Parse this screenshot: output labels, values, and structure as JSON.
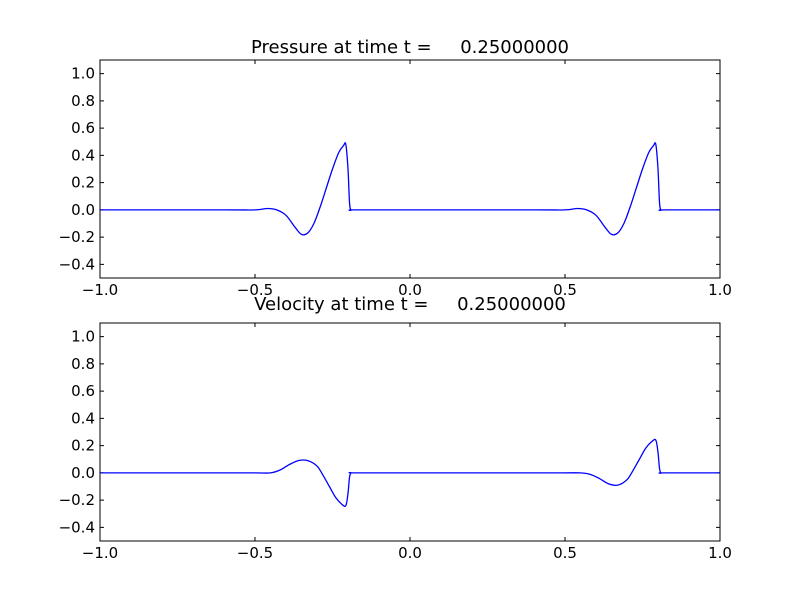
{
  "chart_data": [
    {
      "type": "line",
      "title": "Pressure at time t =     0.25000000",
      "xlim": [
        -1.0,
        1.0
      ],
      "ylim": [
        -0.5,
        1.1
      ],
      "xticks": [
        "−1.0",
        "−0.5",
        "0.0",
        "0.5",
        "1.0"
      ],
      "xtick_values": [
        -1.0,
        -0.5,
        0.0,
        0.5,
        1.0
      ],
      "yticks": [
        "−0.4",
        "−0.2",
        "0.0",
        "0.2",
        "0.4",
        "0.6",
        "0.8",
        "1.0"
      ],
      "ytick_values": [
        -0.4,
        -0.2,
        0.0,
        0.2,
        0.4,
        0.6,
        0.8,
        1.0
      ],
      "grid": false,
      "color": "#0000ff",
      "series": [
        {
          "x": [
            -1.0,
            -0.6,
            -0.5,
            -0.46,
            -0.43,
            -0.4,
            -0.37,
            -0.35,
            -0.33,
            -0.31,
            -0.29,
            -0.27,
            -0.25,
            -0.23,
            -0.215,
            -0.207,
            -0.2,
            -0.195,
            -0.19,
            -0.18,
            0.0,
            0.4,
            0.5,
            0.54,
            0.57,
            0.6,
            0.63,
            0.65,
            0.67,
            0.69,
            0.71,
            0.73,
            0.75,
            0.77,
            0.785,
            0.793,
            0.8,
            0.805,
            0.81,
            0.82,
            1.0
          ],
          "y": [
            0.0,
            0.0,
            0.0,
            0.01,
            0.0,
            -0.04,
            -0.13,
            -0.18,
            -0.17,
            -0.1,
            0.02,
            0.16,
            0.3,
            0.42,
            0.47,
            0.48,
            0.3,
            0.05,
            0.0,
            0.0,
            0.0,
            0.0,
            0.0,
            0.01,
            0.0,
            -0.04,
            -0.13,
            -0.18,
            -0.17,
            -0.1,
            0.02,
            0.16,
            0.3,
            0.42,
            0.47,
            0.48,
            0.3,
            0.05,
            0.0,
            0.0,
            0.0
          ]
        }
      ]
    },
    {
      "type": "line",
      "title": "Velocity at time t =     0.25000000",
      "xlim": [
        -1.0,
        1.0
      ],
      "ylim": [
        -0.5,
        1.1
      ],
      "xticks": [
        "−1.0",
        "−0.5",
        "0.0",
        "0.5",
        "1.0"
      ],
      "xtick_values": [
        -1.0,
        -0.5,
        0.0,
        0.5,
        1.0
      ],
      "yticks": [
        "−0.4",
        "−0.2",
        "0.0",
        "0.2",
        "0.4",
        "0.6",
        "0.8",
        "1.0"
      ],
      "ytick_values": [
        -0.4,
        -0.2,
        0.0,
        0.2,
        0.4,
        0.6,
        0.8,
        1.0
      ],
      "grid": false,
      "color": "#0000ff",
      "series": [
        {
          "x": [
            -1.0,
            -0.6,
            -0.5,
            -0.45,
            -0.42,
            -0.39,
            -0.36,
            -0.33,
            -0.3,
            -0.28,
            -0.26,
            -0.24,
            -0.22,
            -0.207,
            -0.2,
            -0.195,
            -0.19,
            -0.18,
            0.0,
            0.4,
            0.5,
            0.55,
            0.58,
            0.61,
            0.64,
            0.67,
            0.7,
            0.72,
            0.74,
            0.76,
            0.78,
            0.793,
            0.8,
            0.805,
            0.81,
            0.82,
            1.0
          ],
          "y": [
            0.0,
            0.0,
            0.0,
            0.0,
            0.02,
            0.06,
            0.09,
            0.09,
            0.05,
            -0.02,
            -0.1,
            -0.18,
            -0.23,
            -0.24,
            -0.15,
            -0.03,
            0.0,
            0.0,
            0.0,
            0.0,
            0.0,
            0.0,
            -0.01,
            -0.04,
            -0.08,
            -0.09,
            -0.05,
            0.02,
            0.1,
            0.18,
            0.23,
            0.24,
            0.15,
            0.03,
            0.0,
            0.0,
            0.0
          ]
        }
      ]
    }
  ]
}
